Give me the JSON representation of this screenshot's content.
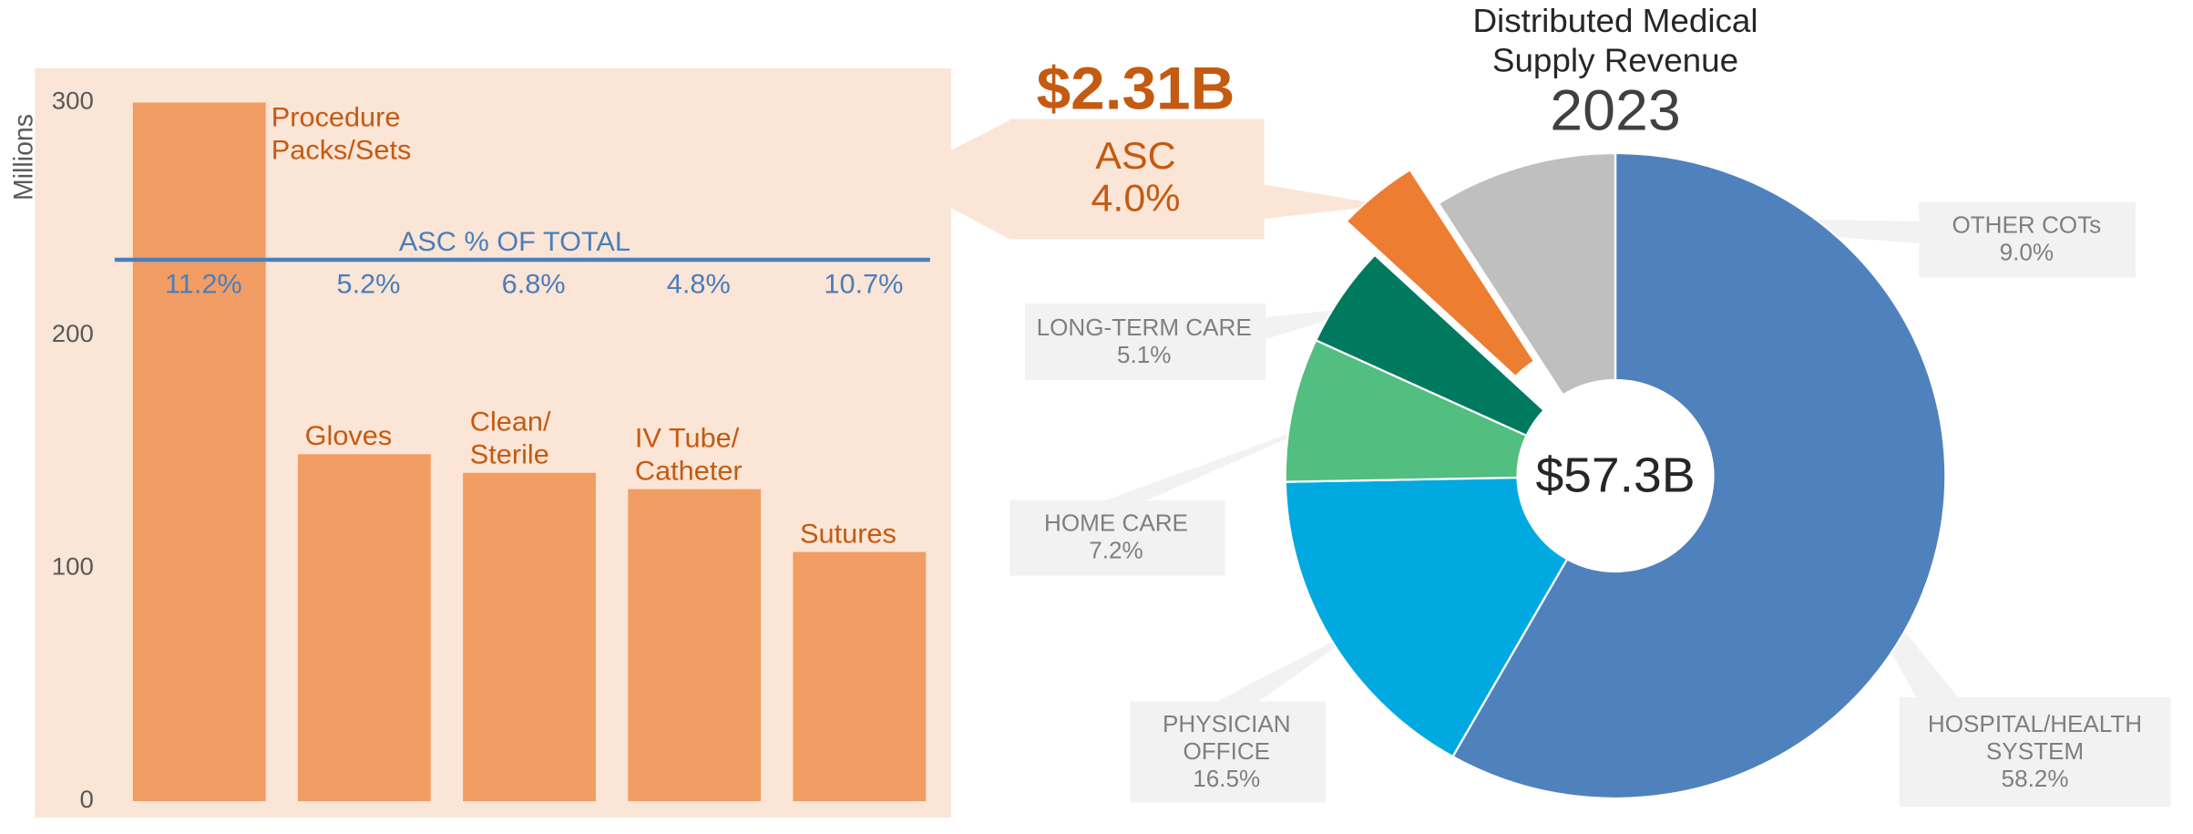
{
  "chart_data": [
    {
      "type": "bar",
      "y_label": "Millions",
      "categories": [
        [
          "Procedure",
          "Packs/Sets"
        ],
        [
          "Gloves"
        ],
        [
          "Clean/",
          "Sterile"
        ],
        [
          "IV Tube/",
          "Catheter"
        ],
        [
          "Sutures"
        ]
      ],
      "values": [
        300,
        149,
        141,
        134,
        107
      ],
      "color": "#f29d63",
      "label_color": "#c55a11",
      "ylim": [
        0,
        300
      ],
      "yticks": [
        0,
        100,
        200,
        300
      ],
      "share": {
        "label": "ASC % OF TOTAL",
        "color": "#4a7ebb",
        "values": [
          11.2,
          5.2,
          6.8,
          4.8,
          10.7
        ],
        "value_labels": [
          "11.2%",
          "5.2%",
          "6.8%",
          "4.8%",
          "10.7%"
        ]
      }
    },
    {
      "type": "pie",
      "title": [
        "Distributed Medical",
        "Supply Revenue"
      ],
      "subtitle": "2023",
      "center_label": "$57.3B",
      "series": [
        {
          "name": [
            "HOSPITAL/HEALTH",
            "SYSTEM"
          ],
          "value": 58.2,
          "value_label": "58.2%",
          "color": "#4f81bd"
        },
        {
          "name": [
            "PHYSICIAN",
            "OFFICE"
          ],
          "value": 16.5,
          "value_label": "16.5%",
          "color": "#00a9e0"
        },
        {
          "name": [
            "HOME CARE"
          ],
          "value": 7.2,
          "value_label": "7.2%",
          "color": "#52be80"
        },
        {
          "name": [
            "LONG-TERM CARE"
          ],
          "value": 5.1,
          "value_label": "5.1%",
          "color": "#007a5e"
        },
        {
          "name": [
            "ASC"
          ],
          "value": 4.0,
          "value_label": "4.0%",
          "color": "#ed7d31",
          "explode": true,
          "callout": "$2.31B"
        },
        {
          "name": [
            "OTHER COTs"
          ],
          "value": 9.0,
          "value_label": "9.0%",
          "color": "#bfbfbf"
        }
      ]
    }
  ]
}
